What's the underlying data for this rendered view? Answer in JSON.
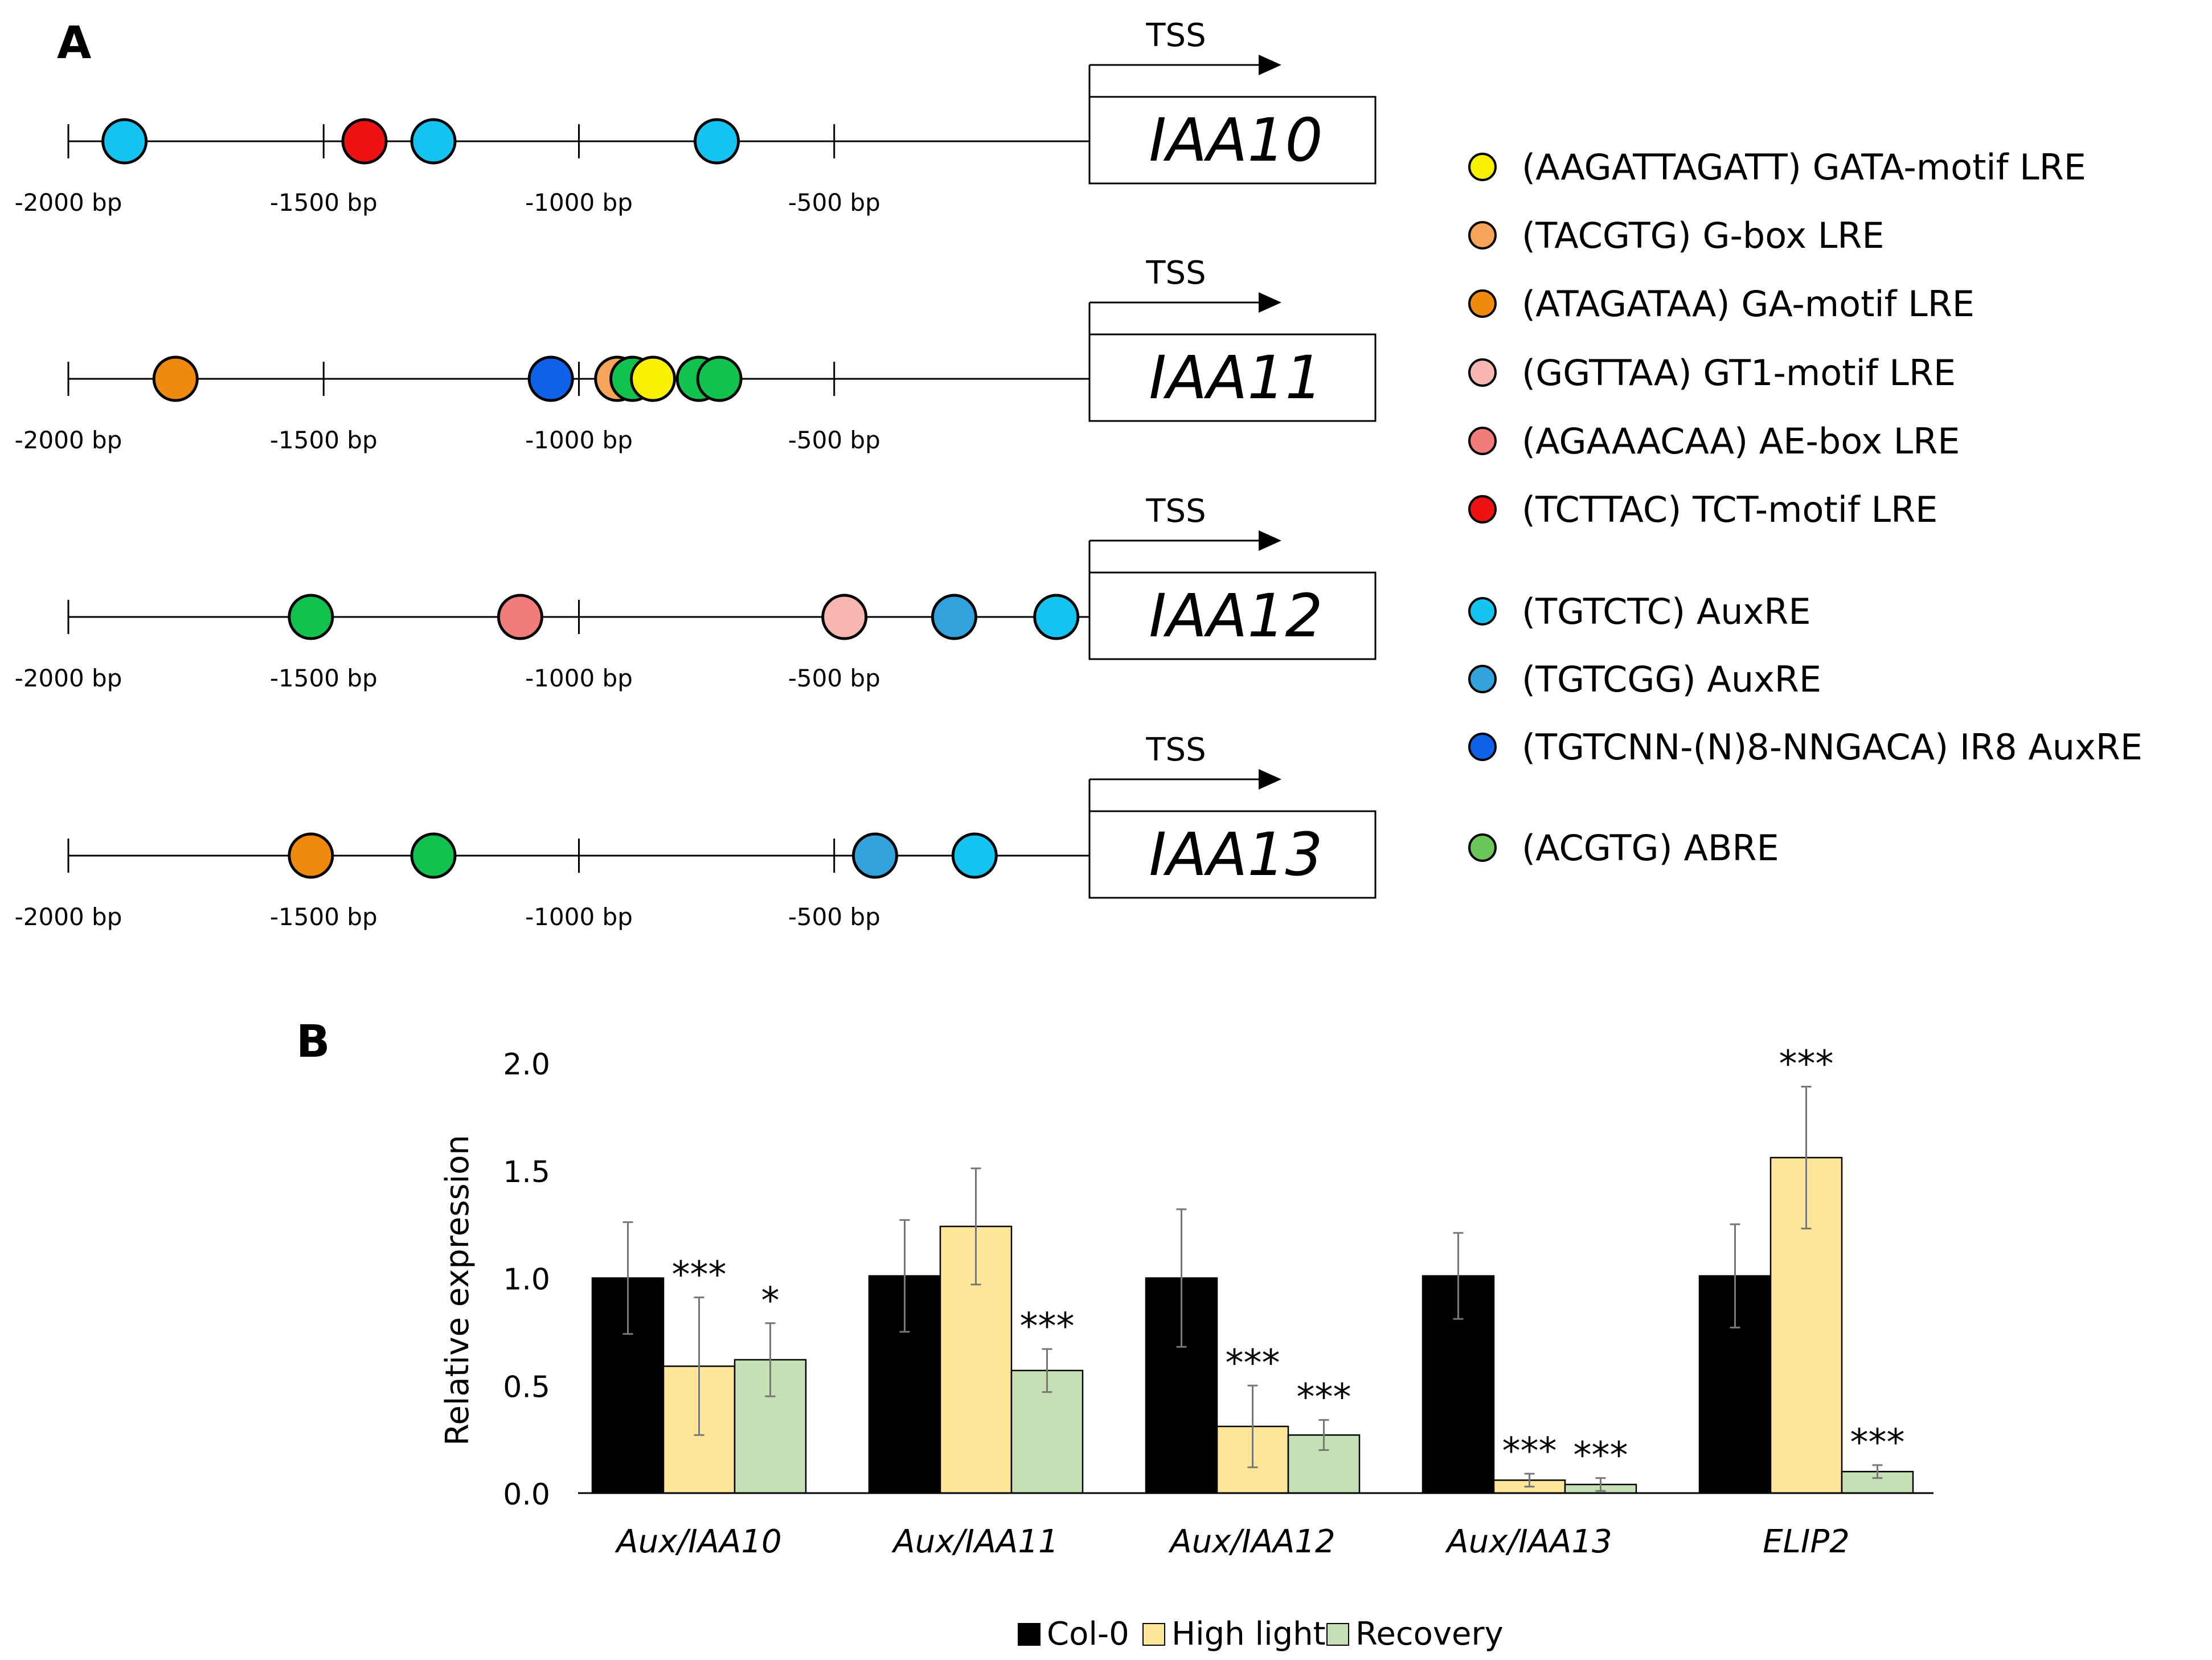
{
  "panel_a": {
    "label": "A",
    "tss_label": "TSS",
    "tick_labels": [
      "-2000 bp",
      "-1500 bp",
      "-1000 bp",
      "-500 bp"
    ],
    "genes": [
      {
        "name": "IAA10",
        "sites": [
          {
            "pos": -1890,
            "motif": "TGTCTC_AuxRE"
          },
          {
            "pos": -1420,
            "motif": "TCTTAC_TCT"
          },
          {
            "pos": -1285,
            "motif": "TGTCTC_AuxRE"
          },
          {
            "pos": -730,
            "motif": "TGTCTC_AuxRE"
          }
        ]
      },
      {
        "name": "IAA11",
        "sites": [
          {
            "pos": -1790,
            "motif": "ATAGATAA_GA"
          },
          {
            "pos": -1055,
            "motif": "IR8_AuxRE"
          },
          {
            "pos": -925,
            "motif": "TACGTG_Gbox"
          },
          {
            "pos": -895,
            "motif": "ACGTG_ABRE"
          },
          {
            "pos": -855,
            "motif": "AAGATTAGATT_GATA"
          },
          {
            "pos": -765,
            "motif": "ACGTG_ABRE"
          },
          {
            "pos": -725,
            "motif": "ACGTG_ABRE"
          }
        ]
      },
      {
        "name": "IAA12",
        "sites": [
          {
            "pos": -1525,
            "motif": "ACGTG_ABRE"
          },
          {
            "pos": -1115,
            "motif": "AGAAACAA_AE"
          },
          {
            "pos": -480,
            "motif": "GGTTAA_GT1"
          },
          {
            "pos": -265,
            "motif": "TGTCGG_AuxRE"
          },
          {
            "pos": -65,
            "motif": "TGTCTC_AuxRE"
          }
        ]
      },
      {
        "name": "IAA13",
        "sites": [
          {
            "pos": -1525,
            "motif": "ATAGATAA_GA"
          },
          {
            "pos": -1285,
            "motif": "ACGTG_ABRE"
          },
          {
            "pos": -420,
            "motif": "TGTCGG_AuxRE"
          },
          {
            "pos": -225,
            "motif": "TGTCTC_AuxRE"
          }
        ]
      }
    ],
    "legend": [
      {
        "key": "AAGATTAGATT_GATA",
        "label": "(AAGATTAGATT) GATA-motif LRE",
        "color": "#f7f000"
      },
      {
        "key": "TACGTG_Gbox",
        "label": "(TACGTG) G-box LRE",
        "color": "#f5a45a"
      },
      {
        "key": "ATAGATAA_GA",
        "label": "(ATAGATAA) GA-motif LRE",
        "color": "#f08a0c"
      },
      {
        "key": "GGTTAA_GT1",
        "label": "(GGTTAA) GT1-motif LRE",
        "color": "#f7b6b0"
      },
      {
        "key": "AGAAACAA_AE",
        "label": "(AGAAACAA) AE-box LRE",
        "color": "#f07c7c"
      },
      {
        "key": "TCTTAC_TCT",
        "label": "(TCTTAC) TCT-motif LRE",
        "color": "#ee1313"
      },
      {
        "key": "TGTCTC_AuxRE",
        "label": "(TGTCTC) AuxRE",
        "color": "#14c3f0"
      },
      {
        "key": "TGTCGG_AuxRE",
        "label": "(TGTCGG) AuxRE",
        "color": "#31a2dc"
      },
      {
        "key": "IR8_AuxRE",
        "label": "(TGTCNN-(N)8-NNGACA) IR8 AuxRE",
        "color": "#0e62e8"
      },
      {
        "key": "ACGTG_ABRE",
        "label": "(ACGTG) ABRE",
        "color": "#6cc65a"
      }
    ],
    "abre_site_color": "#11c24f"
  },
  "chart_data": {
    "type": "bar",
    "panel_label": "B",
    "ylabel": "Relative expression",
    "ylim": [
      0,
      2.0
    ],
    "yticks": [
      "0.0",
      "0.5",
      "1.0",
      "1.5",
      "2.0"
    ],
    "ytick_values": [
      0,
      0.5,
      1.0,
      1.5,
      2.0
    ],
    "categories": [
      "Aux/IAA10",
      "Aux/IAA11",
      "Aux/IAA12",
      "Aux/IAA13",
      "ELIP2"
    ],
    "series": [
      {
        "name": "Col-0",
        "color": "#000000",
        "values": [
          1.0,
          1.01,
          1.0,
          1.01,
          1.01
        ],
        "errors": [
          0.26,
          0.26,
          0.32,
          0.2,
          0.24
        ],
        "significance": [
          "",
          "",
          "",
          "",
          ""
        ]
      },
      {
        "name": "High light",
        "color": "#ffe598",
        "values": [
          0.59,
          1.24,
          0.31,
          0.06,
          1.56
        ],
        "errors": [
          0.32,
          0.27,
          0.19,
          0.03,
          0.33
        ],
        "significance": [
          "***",
          "",
          "***",
          "***",
          "***"
        ]
      },
      {
        "name": "Recovery",
        "color": "#c5e0b4",
        "values": [
          0.62,
          0.57,
          0.27,
          0.04,
          0.1
        ],
        "errors": [
          0.17,
          0.1,
          0.07,
          0.03,
          0.03
        ],
        "significance": [
          "*",
          "***",
          "***",
          "***",
          "***"
        ]
      }
    ]
  }
}
